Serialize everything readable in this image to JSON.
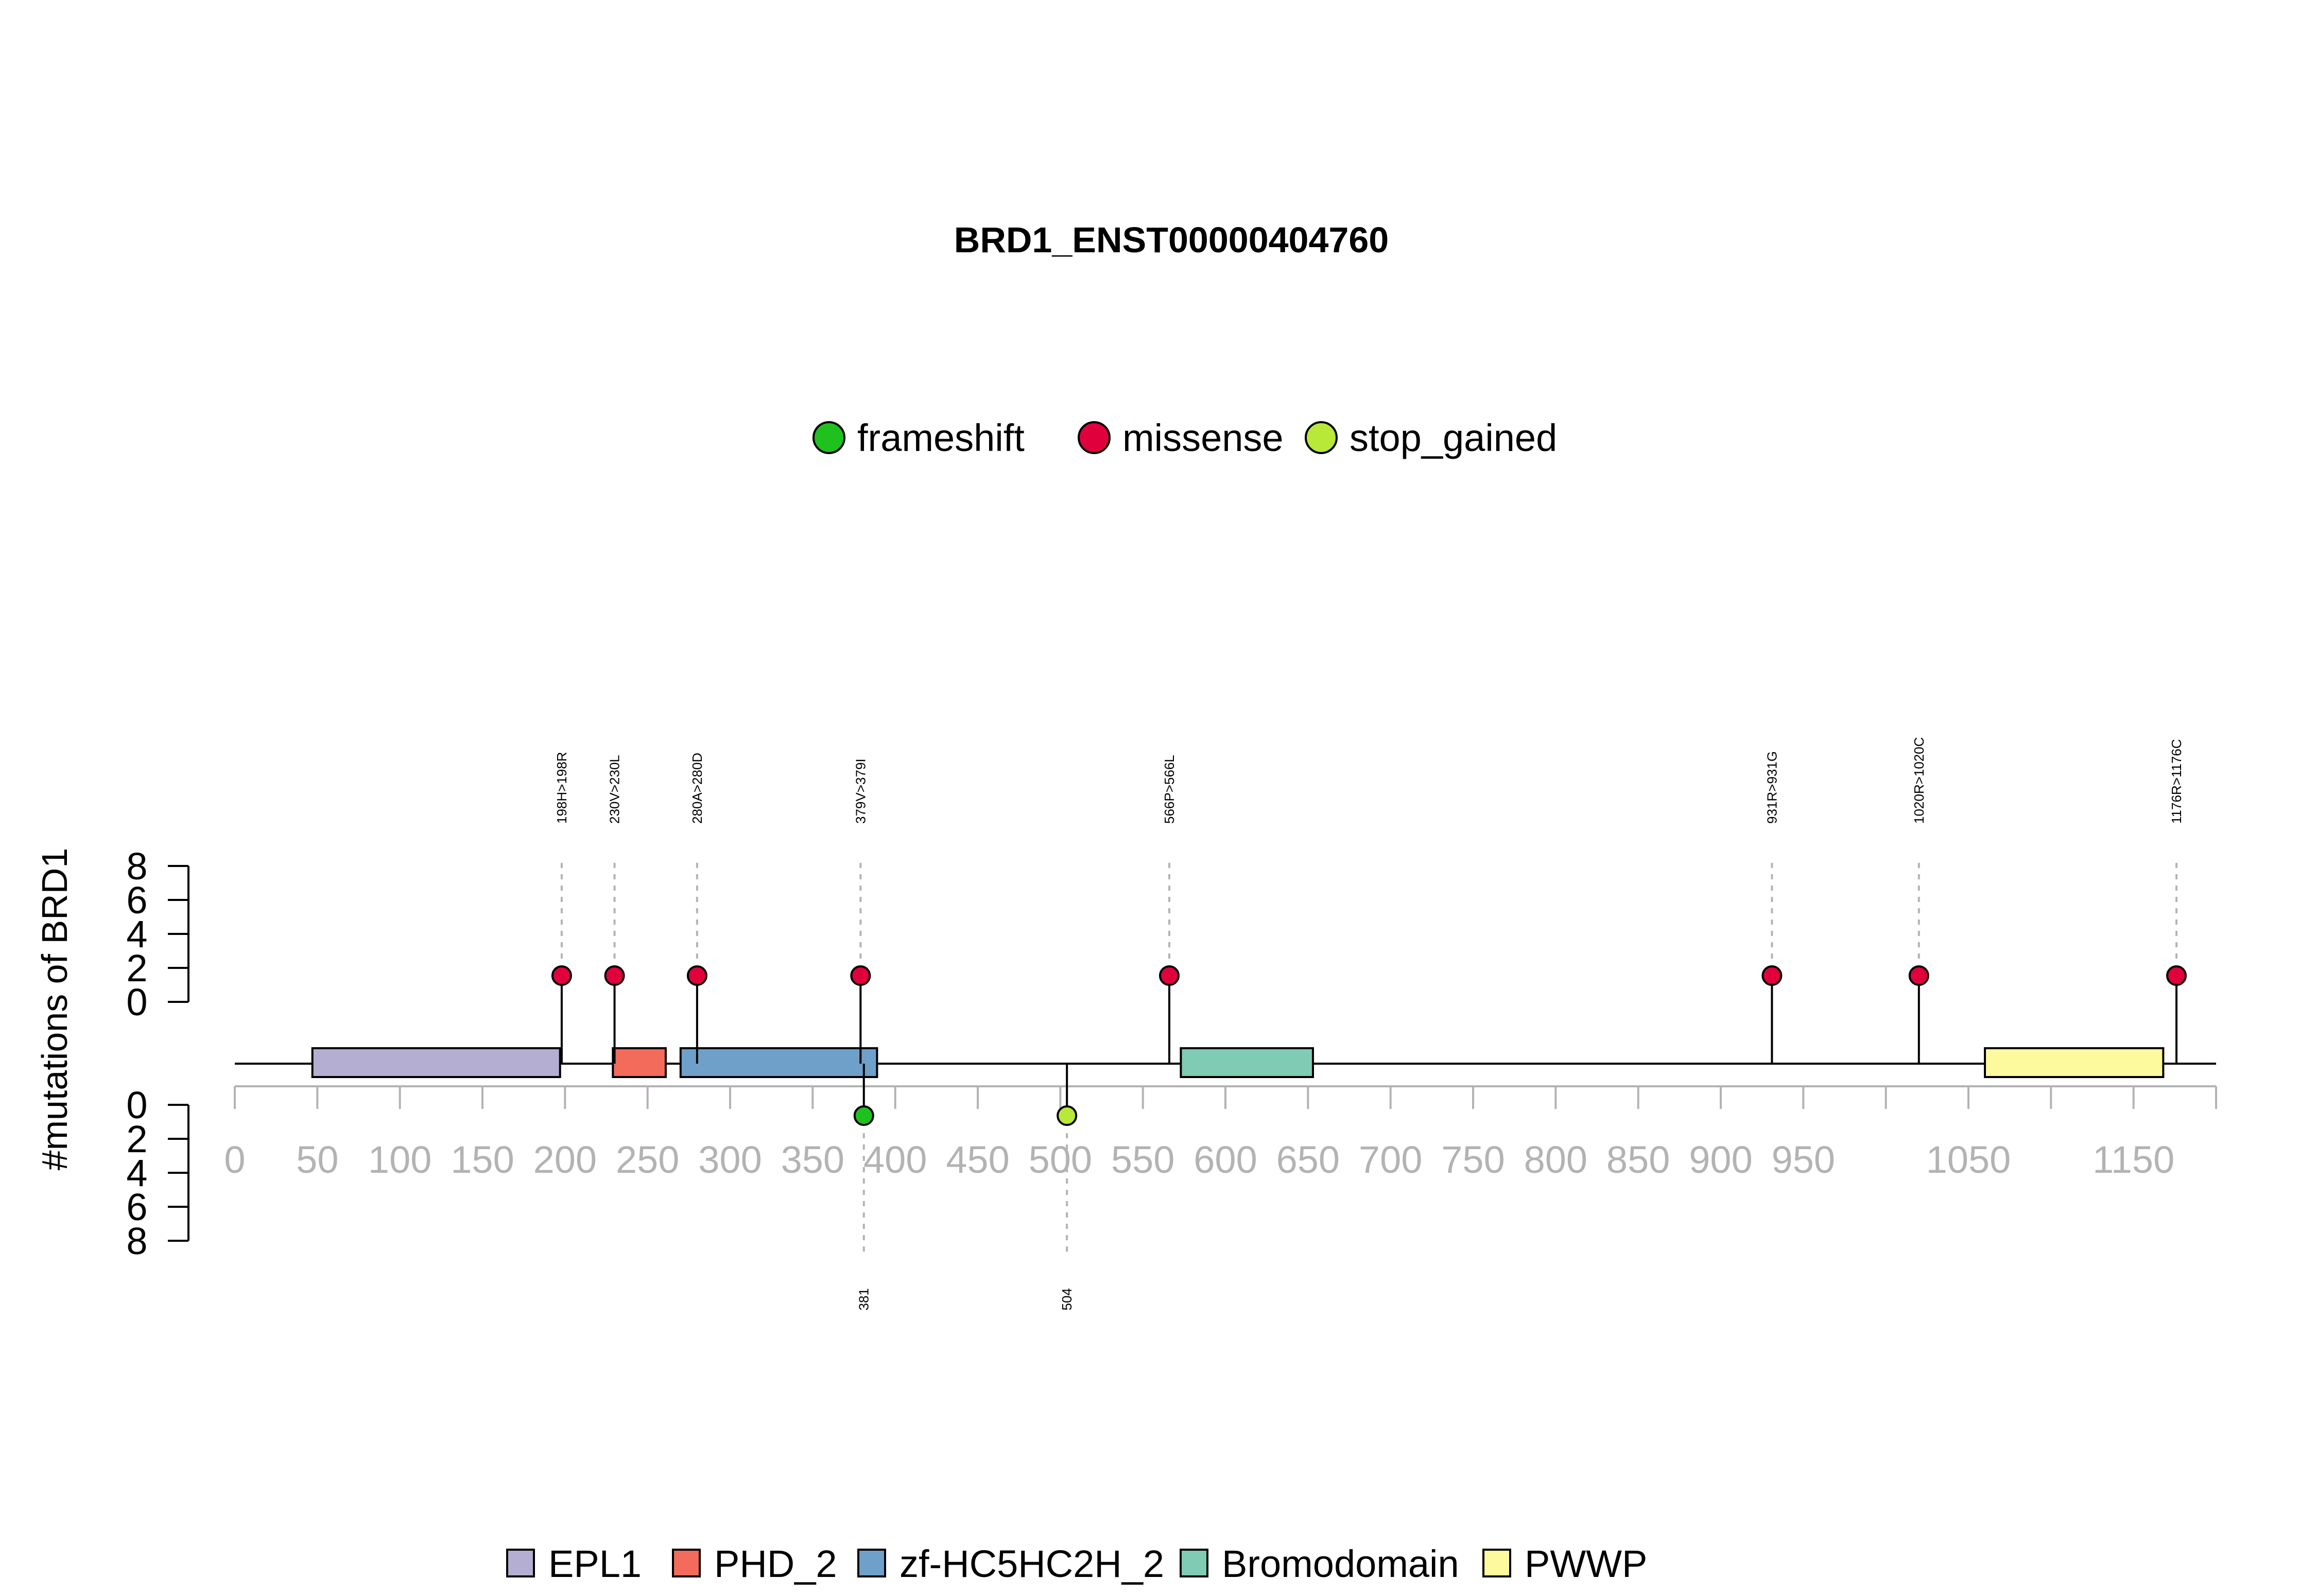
{
  "chart_data": {
    "type": "lollipop",
    "title": "BRD1_ENST00000404760",
    "ylabel": "#mutations of BRD1",
    "protein_length": 1200,
    "xlim": [
      0,
      1200
    ],
    "x_ticks": [
      0,
      50,
      100,
      150,
      200,
      250,
      300,
      350,
      400,
      450,
      500,
      550,
      600,
      650,
      700,
      750,
      800,
      850,
      900,
      950,
      1050,
      1150
    ],
    "y_ticks_top": [
      0,
      2,
      4,
      6,
      8
    ],
    "y_ticks_bottom": [
      0,
      2,
      4,
      6,
      8
    ],
    "ylim": [
      0,
      8
    ],
    "mutation_types": [
      {
        "name": "frameshift",
        "color": "#1fc11f"
      },
      {
        "name": "missense",
        "color": "#e0003c"
      },
      {
        "name": "stop_gained",
        "color": "#b8e838"
      }
    ],
    "domains": [
      {
        "name": "EPL1",
        "start": 47,
        "end": 197,
        "color": "#b3aed2"
      },
      {
        "name": "PHD_2",
        "start": 229,
        "end": 261,
        "color": "#f26b5b"
      },
      {
        "name": "zf-HC5HC2H_2",
        "start": 270,
        "end": 389,
        "color": "#6fa0c9"
      },
      {
        "name": "Bromodomain",
        "start": 573,
        "end": 653,
        "color": "#7fcbb4"
      },
      {
        "name": "PWWP",
        "start": 1060,
        "end": 1168,
        "color": "#fdfa9d"
      }
    ],
    "mutations_top": [
      {
        "position": 198,
        "count": 1,
        "type": "missense",
        "label": "198H>198R"
      },
      {
        "position": 230,
        "count": 1,
        "type": "missense",
        "label": "230V>230L"
      },
      {
        "position": 280,
        "count": 1,
        "type": "missense",
        "label": "280A>280D"
      },
      {
        "position": 379,
        "count": 1,
        "type": "missense",
        "label": "379V>379I"
      },
      {
        "position": 566,
        "count": 1,
        "type": "missense",
        "label": "566P>566L"
      },
      {
        "position": 931,
        "count": 1,
        "type": "missense",
        "label": "931R>931G"
      },
      {
        "position": 1020,
        "count": 1,
        "type": "missense",
        "label": "1020R>1020C"
      },
      {
        "position": 1176,
        "count": 1,
        "type": "missense",
        "label": "1176R>1176C"
      }
    ],
    "mutations_bottom": [
      {
        "position": 381,
        "count": 1,
        "type": "frameshift",
        "label": "381"
      },
      {
        "position": 504,
        "count": 1,
        "type": "stop_gained",
        "label": "504"
      }
    ]
  }
}
